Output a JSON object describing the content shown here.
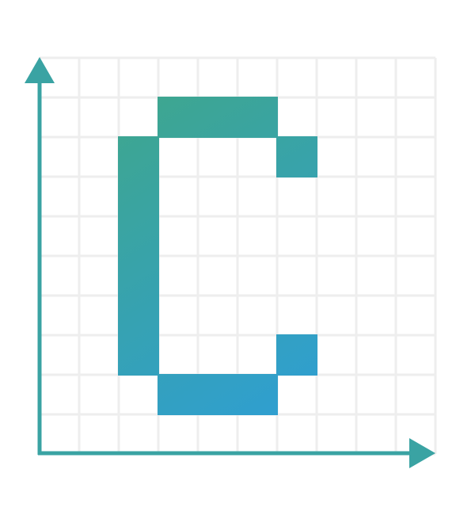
{
  "colors": {
    "background": "#ffffff",
    "grid": "#eeeeee",
    "axis": "#3aa3a3",
    "gradient_start": "#3ea68f",
    "gradient_end": "#2e9ed6"
  },
  "icons": {
    "y_axis": "arrow-up-icon",
    "x_axis": "arrow-right-icon"
  },
  "grid": {
    "columns": 10,
    "rows": 10
  },
  "letter_c": {
    "cells": [
      {
        "col": 3,
        "row": 1
      },
      {
        "col": 4,
        "row": 1
      },
      {
        "col": 5,
        "row": 1
      },
      {
        "col": 2,
        "row": 2
      },
      {
        "col": 6,
        "row": 2
      },
      {
        "col": 2,
        "row": 3
      },
      {
        "col": 2,
        "row": 4
      },
      {
        "col": 2,
        "row": 5
      },
      {
        "col": 2,
        "row": 6
      },
      {
        "col": 2,
        "row": 7
      },
      {
        "col": 6,
        "row": 7
      },
      {
        "col": 3,
        "row": 8
      },
      {
        "col": 4,
        "row": 8
      },
      {
        "col": 5,
        "row": 8
      }
    ]
  }
}
